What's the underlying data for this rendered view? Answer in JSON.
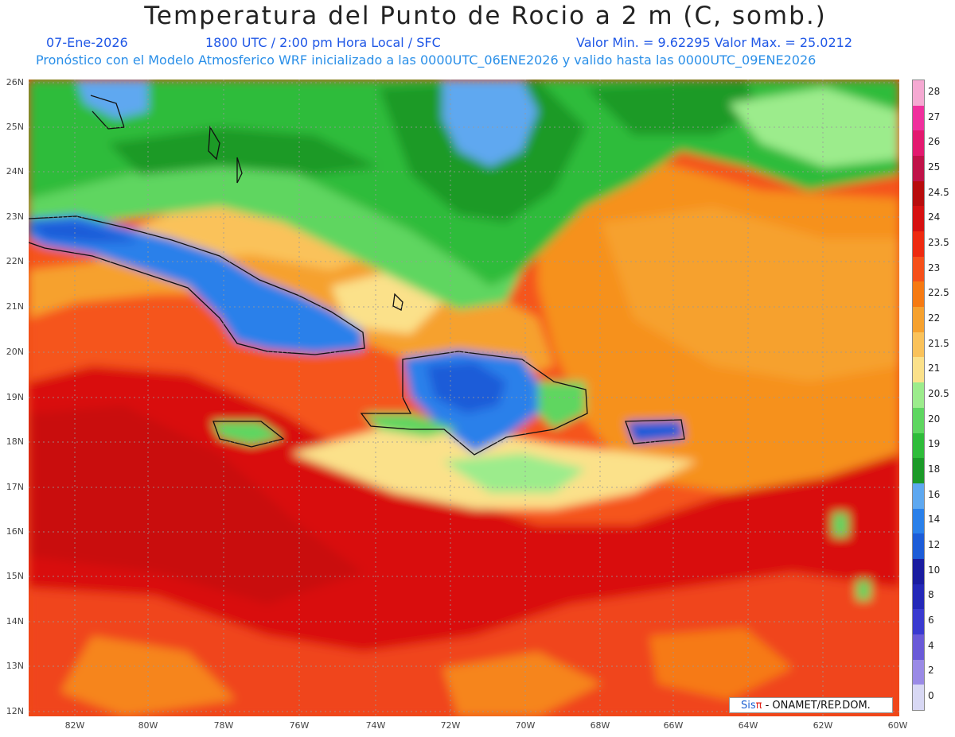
{
  "title": "Temperatura del Punto de Rocio a 2 m (C, somb.)",
  "date": "07-Ene-2026",
  "time": "1800 UTC / 2:00 pm Hora Local / SFC",
  "minmax": "Valor Min. = 9.62295  Valor Max. = 25.0212",
  "model_line": "Pronóstico con el Modelo Atmosferico WRF inicializado a las 0000UTC_06ENE2026 y valido hasta las  0000UTC_09ENE2026",
  "lat_labels": [
    "26N",
    "25N",
    "24N",
    "23N",
    "22N",
    "21N",
    "20N",
    "19N",
    "18N",
    "17N",
    "16N",
    "15N",
    "14N",
    "13N",
    "12N"
  ],
  "lon_labels": [
    "82W",
    "80W",
    "78W",
    "76W",
    "74W",
    "72W",
    "70W",
    "68W",
    "66W",
    "64W",
    "62W",
    "60W"
  ],
  "legend": {
    "labels": [
      "28",
      "27",
      "26",
      "25",
      "24.5",
      "24",
      "23.5",
      "23",
      "22.5",
      "22",
      "21.5",
      "21",
      "20.5",
      "20",
      "19",
      "18",
      "16",
      "14",
      "12",
      "10",
      "8",
      "6",
      "4",
      "2",
      "0"
    ],
    "colors": [
      "#f5a9d2",
      "#f02f9d",
      "#e3196f",
      "#c01248",
      "#b80c0c",
      "#d61010",
      "#ee2a10",
      "#f6501a",
      "#f67a12",
      "#f6a12e",
      "#fac25a",
      "#fbe18a",
      "#9cec8c",
      "#5ed660",
      "#2ebc3a",
      "#1b9a28",
      "#5ea8f0",
      "#2a80ea",
      "#1c5cd8",
      "#1a1ca0",
      "#2428b8",
      "#3a3ad0",
      "#6a5ad8",
      "#9a8ae6",
      "#d8d8f4"
    ]
  },
  "credit": {
    "brand": "Sis",
    "pi": "π",
    "org": " - ONAMET/REP.DOM."
  },
  "colors": {
    "title": "#222222",
    "subtitle": "#1f57e6",
    "model_line": "#2a8fe8"
  }
}
